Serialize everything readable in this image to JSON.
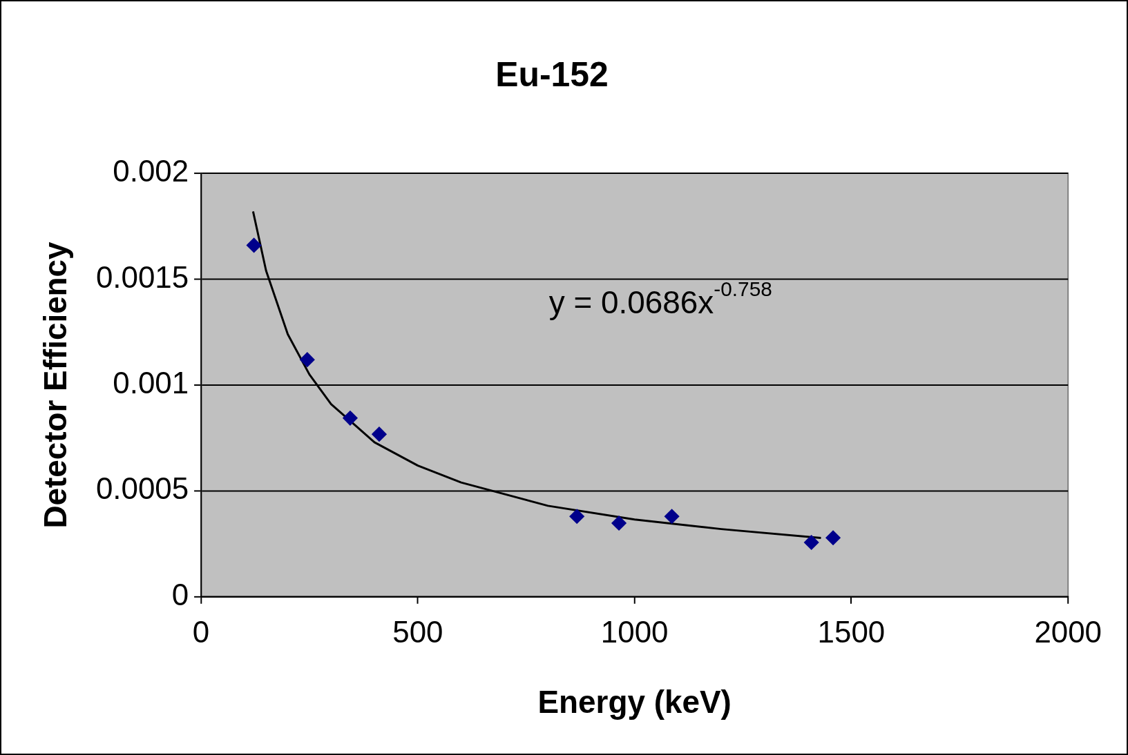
{
  "chart_data": {
    "type": "scatter",
    "title": "Eu-152",
    "xlabel": "Energy (keV)",
    "ylabel": "Detector Efficiency",
    "xlim": [
      0,
      2000
    ],
    "xticks": [
      0,
      500,
      1000,
      1500,
      2000
    ],
    "ylim": [
      0,
      0.002
    ],
    "yticks": [
      0,
      0.0005,
      0.001,
      0.0015,
      0.002
    ],
    "grid": "y",
    "legend": false,
    "marker": "diamond",
    "series": [
      {
        "type": "scatter",
        "color": "#00008b",
        "x": [
          122,
          245,
          344,
          411,
          867,
          964,
          1086,
          1408,
          1458
        ],
        "values": [
          0.00166,
          0.00112,
          0.000844,
          0.000768,
          0.00038,
          0.000348,
          0.00038,
          0.000257,
          0.000279
        ]
      },
      {
        "type": "line",
        "color": "#000000",
        "marker": "none",
        "x": [
          120,
          150,
          200,
          250,
          300,
          400,
          500,
          600,
          800,
          1000,
          1200,
          1430
        ],
        "values": [
          0.00182,
          0.00154,
          0.00124,
          0.00105,
          0.00091,
          0.00073,
          0.00062,
          0.00054,
          0.00043,
          0.000365,
          0.00032,
          0.000278
        ]
      }
    ],
    "annotations": [
      "y = 0.0686x$^{-0.758}$"
    ]
  }
}
